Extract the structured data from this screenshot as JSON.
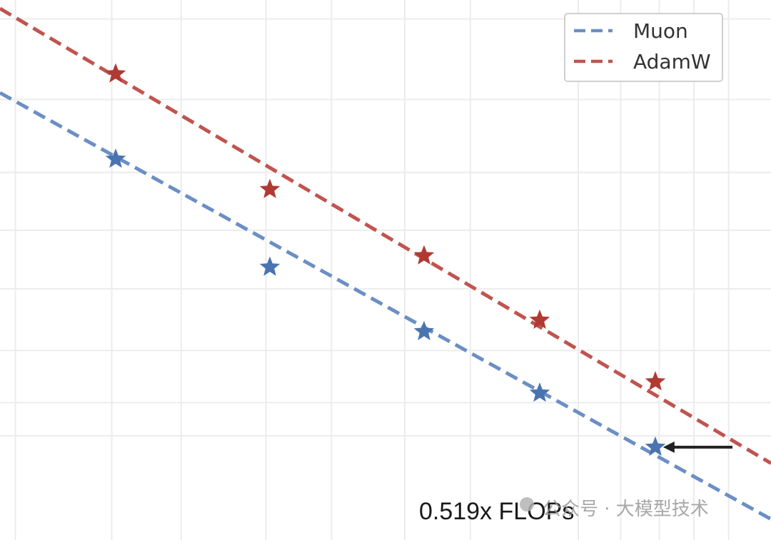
{
  "chart_data": {
    "type": "line",
    "title": "",
    "xlabel": "",
    "ylabel": "",
    "grid": true,
    "legend_position": "top-right",
    "series": [
      {
        "name": "Muon",
        "color": "#4a74b0",
        "line_color": "#6b8fc4",
        "marker": "star",
        "points": [
          [
            1.5,
            4.52
          ],
          [
            3.5,
            3.38
          ],
          [
            5.5,
            2.7
          ],
          [
            7.0,
            2.05
          ],
          [
            8.5,
            1.48
          ]
        ]
      },
      {
        "name": "AdamW",
        "color": "#b03a32",
        "line_color": "#c0544f",
        "marker": "star",
        "points": [
          [
            1.5,
            5.42
          ],
          [
            3.5,
            4.2
          ],
          [
            5.5,
            3.5
          ],
          [
            7.0,
            2.82
          ],
          [
            8.5,
            2.17
          ]
        ]
      }
    ],
    "fit_lines": [
      {
        "series": "Muon",
        "from": [
          0,
          5.22
        ],
        "to": [
          10,
          0.72
        ]
      },
      {
        "series": "AdamW",
        "from": [
          0,
          6.11
        ],
        "to": [
          10,
          1.31
        ]
      }
    ],
    "annotations": [
      {
        "text": "0.519x FLOPs",
        "arrow_from": [
          9.5,
          1.48
        ],
        "arrow_to": [
          8.6,
          1.48
        ]
      }
    ],
    "watermark": "公众号 · 大模型技术",
    "xlim": [
      0,
      10
    ],
    "ylim": [
      0.5,
      6.2
    ]
  }
}
